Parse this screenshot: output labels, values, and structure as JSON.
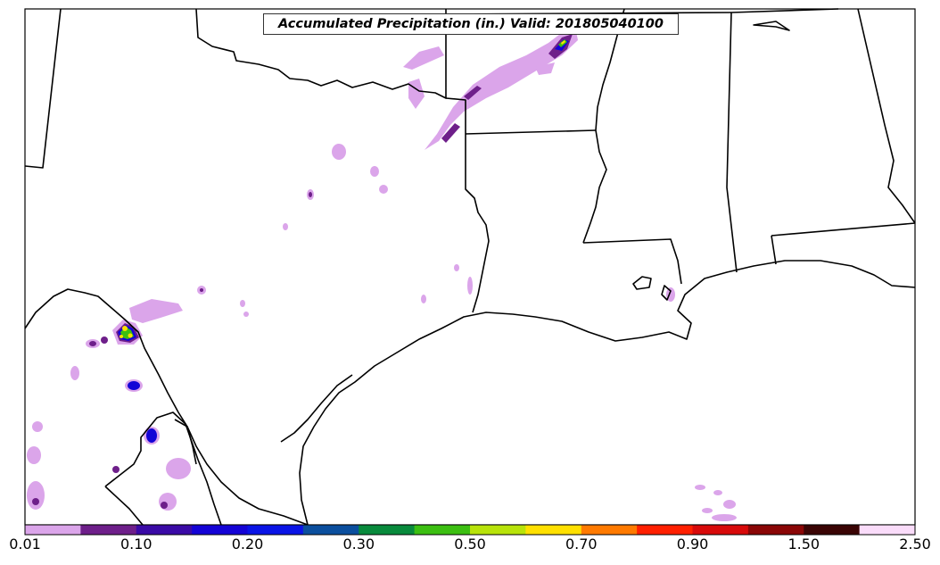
{
  "map": {
    "title": "Accumulated Precipitation (in.) Valid: 201805040100",
    "colorbar": {
      "colors": [
        "#dba5ea",
        "#6e1f8a",
        "#3a0aa6",
        "#1403d6",
        "#0a14e6",
        "#0b4f9e",
        "#088a3c",
        "#3cbf12",
        "#b8e30a",
        "#ffe000",
        "#ff7a00",
        "#ff2000",
        "#d80a0a",
        "#8a0606",
        "#3a0404",
        "#fadcfa"
      ],
      "ticks": [
        "0.01",
        "0.10",
        "0.20",
        "0.30",
        "0.50",
        "0.70",
        "0.90",
        "1.50",
        "2.50"
      ]
    }
  }
}
